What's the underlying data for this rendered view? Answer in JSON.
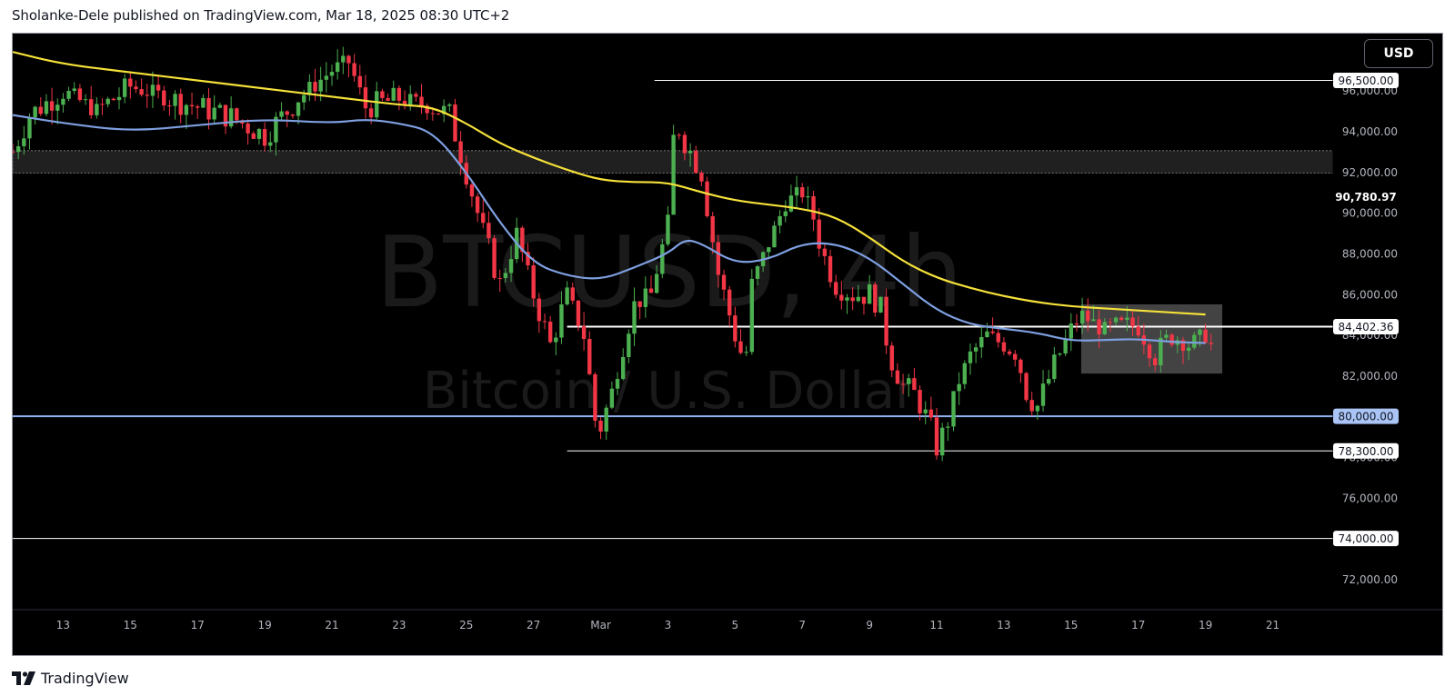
{
  "header": {
    "publisher_line": "Sholanke-Dele published on TradingView.com, Mar 18, 2025 08:30 UTC+2"
  },
  "toolbar": {
    "currency_label": "USD"
  },
  "watermark": {
    "symbol": "BTCUSD, 4h",
    "description": "Bitcoin / U.S. Dollar"
  },
  "footer": {
    "brand": "TradingView"
  },
  "icons": {
    "brand_logo": "tradingview-logo-icon"
  },
  "colors": {
    "background": "#000000",
    "up_candle": "#4caf50",
    "down_candle": "#f23645",
    "ma_fast": "#7e9fe0",
    "ma_slow": "#f5e13a",
    "level_line": "#ffffff",
    "support_line": "#8fb3f0",
    "zone_fill": "#555555"
  },
  "chart_data": {
    "type": "candlestick",
    "symbol": "BTCUSD",
    "interval": "4h",
    "y_axis": {
      "min": 70500,
      "max": 98800,
      "ticks": [
        "72,000.00",
        "74,000.00",
        "76,000.00",
        "78,000.00",
        "80,000.00",
        "82,000.00",
        "84,000.00",
        "86,000.00",
        "88,000.00",
        "90,000.00",
        "92,000.00",
        "94,000.00",
        "96,000.00"
      ],
      "tick_values": [
        72000,
        74000,
        76000,
        78000,
        80000,
        82000,
        84000,
        86000,
        88000,
        90000,
        92000,
        94000,
        96000
      ]
    },
    "x_axis": {
      "start_day": 11.5,
      "end_day": 50.8,
      "tick_labels": [
        "13",
        "15",
        "17",
        "19",
        "21",
        "23",
        "25",
        "27",
        "Mar",
        "3",
        "5",
        "7",
        "9",
        "11",
        "13",
        "15",
        "17",
        "19",
        "21"
      ],
      "tick_days": [
        13,
        15,
        17,
        19,
        21,
        23,
        25,
        27,
        29,
        31,
        33,
        35,
        37,
        39,
        41,
        43,
        45,
        47,
        49
      ]
    },
    "price_labels": [
      {
        "text": "96,500.00",
        "value": 96500,
        "style": "white"
      },
      {
        "text": "90,780.97",
        "value": 90780.97,
        "style": "plain"
      },
      {
        "text": "84,402.36",
        "value": 84402.36,
        "style": "white"
      },
      {
        "text": "80,000.00",
        "value": 80000,
        "style": "blue"
      },
      {
        "text": "78,300.00",
        "value": 78300,
        "style": "white"
      },
      {
        "text": "74,000.00",
        "value": 74000,
        "style": "white"
      }
    ],
    "horizontal_levels": [
      {
        "name": "level-96500",
        "value": 96500,
        "from_day": 30.6,
        "color": "#ffffff",
        "width": 1
      },
      {
        "name": "level-84402",
        "value": 84402.36,
        "from_day": 28.0,
        "color": "#ffffff",
        "width": 2
      },
      {
        "name": "level-80000",
        "value": 80000,
        "from_day": 11.5,
        "color": "#8fb3f0",
        "width": 2
      },
      {
        "name": "level-78300",
        "value": 78300,
        "from_day": 28.0,
        "color": "#ffffff",
        "width": 1
      },
      {
        "name": "level-74000",
        "value": 74000,
        "from_day": 11.5,
        "color": "#ffffff",
        "width": 1
      }
    ],
    "zones": [
      {
        "name": "supply-zone",
        "from_day": 11.5,
        "to_day": 50.8,
        "low": 91950,
        "high": 93050
      },
      {
        "name": "consolidation-box",
        "from_day": 43.3,
        "to_day": 47.5,
        "low": 82100,
        "high": 85500
      }
    ],
    "anchors": [
      [
        11.5,
        93000,
        1
      ],
      [
        12.0,
        94800,
        1
      ],
      [
        13.0,
        96000,
        0
      ],
      [
        14.0,
        95000,
        1
      ],
      [
        15.0,
        96200,
        0
      ],
      [
        16.0,
        95700,
        1
      ],
      [
        17.0,
        95200,
        1
      ],
      [
        18.0,
        94700,
        1
      ],
      [
        19.0,
        93800,
        1
      ],
      [
        20.0,
        95600,
        0
      ],
      [
        21.0,
        97000,
        0
      ],
      [
        21.5,
        97400,
        0
      ],
      [
        22.0,
        95200,
        1
      ],
      [
        23.0,
        95600,
        0
      ],
      [
        24.0,
        95200,
        1
      ],
      [
        24.5,
        94800,
        1
      ],
      [
        25.0,
        92000,
        1
      ],
      [
        25.5,
        89000,
        1
      ],
      [
        26.0,
        86500,
        1
      ],
      [
        26.5,
        89000,
        0
      ],
      [
        27.0,
        86000,
        1
      ],
      [
        27.5,
        83500,
        1
      ],
      [
        28.0,
        86000,
        0
      ],
      [
        28.5,
        84000,
        1
      ],
      [
        28.9,
        79000,
        1
      ],
      [
        29.3,
        81000,
        0
      ],
      [
        30.0,
        85500,
        0
      ],
      [
        30.5,
        86000,
        0
      ],
      [
        31.0,
        89500,
        0
      ],
      [
        31.2,
        94500,
        0
      ],
      [
        31.5,
        93500,
        1
      ],
      [
        32.0,
        92000,
        1
      ],
      [
        32.5,
        87000,
        1
      ],
      [
        33.0,
        84000,
        1
      ],
      [
        33.3,
        82500,
        1
      ],
      [
        33.5,
        86500,
        0
      ],
      [
        34.0,
        88500,
        0
      ],
      [
        34.5,
        90500,
        0
      ],
      [
        35.0,
        91000,
        0
      ],
      [
        35.3,
        90000,
        1
      ],
      [
        35.6,
        88000,
        1
      ],
      [
        36.0,
        86500,
        1
      ],
      [
        36.5,
        86000,
        1
      ],
      [
        37.0,
        86000,
        1
      ],
      [
        37.3,
        85500,
        1
      ],
      [
        37.6,
        83000,
        1
      ],
      [
        38.0,
        81500,
        1
      ],
      [
        38.4,
        81000,
        1
      ],
      [
        38.8,
        79500,
        1
      ],
      [
        39.0,
        78500,
        1
      ],
      [
        39.3,
        79500,
        0
      ],
      [
        39.6,
        81500,
        0
      ],
      [
        40.0,
        83000,
        0
      ],
      [
        40.5,
        84000,
        0
      ],
      [
        41.0,
        83500,
        0
      ],
      [
        41.4,
        83000,
        1
      ],
      [
        41.7,
        81000,
        1
      ],
      [
        42.0,
        80500,
        1
      ],
      [
        42.5,
        82500,
        0
      ],
      [
        43.0,
        84300,
        0
      ],
      [
        43.3,
        85000,
        0
      ],
      [
        44.0,
        84200,
        1
      ],
      [
        45.0,
        84500,
        1
      ],
      [
        45.5,
        83000,
        1
      ],
      [
        46.0,
        84000,
        0
      ],
      [
        46.5,
        83500,
        0
      ],
      [
        47.0,
        84000,
        1
      ],
      [
        47.3,
        83000,
        1
      ]
    ],
    "moving_averages": [
      {
        "name": "ma-fast",
        "color": "#7e9fe0",
        "points": [
          [
            11.5,
            94800
          ],
          [
            13.0,
            94400
          ],
          [
            15.0,
            94000
          ],
          [
            17.0,
            94300
          ],
          [
            19.0,
            94600
          ],
          [
            21.0,
            94400
          ],
          [
            22.0,
            94600
          ],
          [
            23.0,
            94400
          ],
          [
            24.0,
            94000
          ],
          [
            25.0,
            92000
          ],
          [
            26.0,
            89500
          ],
          [
            27.0,
            87500
          ],
          [
            28.0,
            86900
          ],
          [
            29.0,
            86700
          ],
          [
            30.0,
            87300
          ],
          [
            31.0,
            88000
          ],
          [
            31.5,
            88700
          ],
          [
            32.0,
            88500
          ],
          [
            33.0,
            87500
          ],
          [
            34.0,
            87700
          ],
          [
            35.0,
            88500
          ],
          [
            36.0,
            88500
          ],
          [
            37.0,
            87800
          ],
          [
            38.0,
            86500
          ],
          [
            39.0,
            85200
          ],
          [
            40.0,
            84500
          ],
          [
            41.0,
            84300
          ],
          [
            42.0,
            84100
          ],
          [
            43.0,
            83700
          ],
          [
            44.0,
            83750
          ],
          [
            45.0,
            83800
          ],
          [
            46.0,
            83650
          ],
          [
            47.0,
            83600
          ]
        ]
      },
      {
        "name": "ma-slow",
        "color": "#f5e13a",
        "points": [
          [
            11.5,
            97900
          ],
          [
            13.0,
            97300
          ],
          [
            15.0,
            96900
          ],
          [
            17.0,
            96500
          ],
          [
            19.0,
            96100
          ],
          [
            21.0,
            95700
          ],
          [
            23.0,
            95300
          ],
          [
            24.0,
            95200
          ],
          [
            25.0,
            94400
          ],
          [
            26.0,
            93400
          ],
          [
            27.0,
            92700
          ],
          [
            28.0,
            92100
          ],
          [
            29.0,
            91600
          ],
          [
            30.0,
            91500
          ],
          [
            31.0,
            91500
          ],
          [
            32.0,
            91000
          ],
          [
            33.0,
            90600
          ],
          [
            34.0,
            90400
          ],
          [
            35.0,
            90200
          ],
          [
            36.0,
            89800
          ],
          [
            37.0,
            88800
          ],
          [
            38.0,
            87600
          ],
          [
            39.0,
            86800
          ],
          [
            40.0,
            86300
          ],
          [
            41.0,
            85900
          ],
          [
            42.0,
            85600
          ],
          [
            43.0,
            85400
          ],
          [
            44.0,
            85300
          ],
          [
            45.0,
            85200
          ],
          [
            46.0,
            85100
          ],
          [
            47.0,
            85000
          ]
        ]
      }
    ]
  }
}
